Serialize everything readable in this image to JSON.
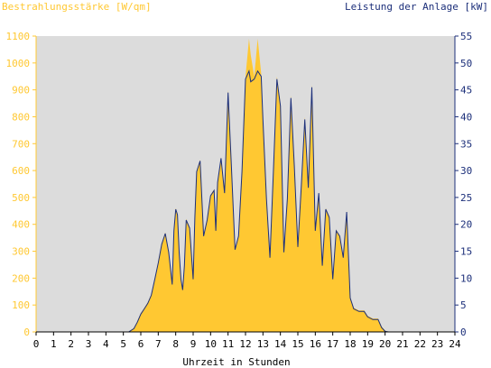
{
  "chart_data": {
    "type": "area",
    "title_left": "Bestrahlungsstärke [W/qm]",
    "title_right": "Leistung der Anlage [kW]",
    "xlabel": "Uhrzeit in Stunden",
    "x_ticks": [
      "0",
      "1",
      "2",
      "3",
      "4",
      "5",
      "6",
      "7",
      "8",
      "9",
      "10",
      "11",
      "12",
      "13",
      "14",
      "15",
      "16",
      "17",
      "18",
      "19",
      "20",
      "21",
      "22",
      "23",
      "24"
    ],
    "y_left_ticks": [
      "0",
      "100",
      "200",
      "300",
      "400",
      "500",
      "600",
      "700",
      "800",
      "900",
      "1000",
      "1100"
    ],
    "y_right_ticks": [
      "0",
      "5",
      "10",
      "15",
      "20",
      "25",
      "30",
      "35",
      "40",
      "45",
      "50",
      "55"
    ],
    "xlim": [
      0,
      24
    ],
    "ylim_left": [
      0,
      1100
    ],
    "ylim_right": [
      0,
      55
    ],
    "grid": false,
    "colors": {
      "plot_bg": "#dcdcdc",
      "irradiance_fill": "#ffc832",
      "power_line": "#1c2f7a",
      "left_axis": "#ffc832",
      "right_axis": "#1c2f7a",
      "x_axis_text": "#000000"
    },
    "series": [
      {
        "axis": "left",
        "style": "filled-area",
        "x": [
          0,
          5.3,
          5.6,
          5.8,
          6.0,
          6.2,
          6.4,
          6.6,
          6.8,
          7.0,
          7.2,
          7.4,
          7.6,
          7.8,
          7.9,
          8.0,
          8.1,
          8.2,
          8.3,
          8.4,
          8.5,
          8.6,
          8.8,
          9.0,
          9.1,
          9.2,
          9.4,
          9.6,
          9.8,
          10.0,
          10.2,
          10.3,
          10.4,
          10.6,
          10.8,
          11.0,
          11.2,
          11.4,
          11.6,
          11.8,
          12.0,
          12.2,
          12.3,
          12.5,
          12.7,
          12.9,
          13.0,
          13.2,
          13.4,
          13.6,
          13.8,
          14.0,
          14.2,
          14.4,
          14.6,
          14.8,
          15.0,
          15.2,
          15.4,
          15.6,
          15.8,
          16.0,
          16.2,
          16.4,
          16.6,
          16.8,
          17.0,
          17.2,
          17.4,
          17.6,
          17.8,
          18.0,
          18.2,
          18.5,
          18.8,
          19.0,
          19.3,
          19.6,
          19.8,
          20.0,
          20.2,
          24
        ],
        "y": [
          0,
          0,
          15,
          40,
          70,
          90,
          110,
          140,
          200,
          260,
          330,
          370,
          300,
          180,
          380,
          460,
          440,
          300,
          200,
          160,
          250,
          420,
          390,
          200,
          430,
          600,
          640,
          360,
          420,
          510,
          530,
          380,
          560,
          650,
          520,
          900,
          610,
          310,
          360,
          600,
          950,
          1090,
          1030,
          950,
          1090,
          960,
          800,
          500,
          280,
          600,
          950,
          850,
          300,
          500,
          880,
          620,
          320,
          550,
          800,
          540,
          920,
          380,
          520,
          250,
          460,
          430,
          200,
          380,
          360,
          280,
          450,
          130,
          90,
          80,
          80,
          60,
          50,
          50,
          20,
          5,
          0,
          0
        ]
      },
      {
        "axis": "right",
        "style": "line",
        "x": [
          0,
          5.3,
          5.6,
          5.8,
          6.0,
          6.2,
          6.4,
          6.6,
          6.8,
          7.0,
          7.2,
          7.4,
          7.6,
          7.8,
          7.9,
          8.0,
          8.1,
          8.2,
          8.3,
          8.4,
          8.5,
          8.6,
          8.8,
          9.0,
          9.1,
          9.2,
          9.4,
          9.6,
          9.8,
          10.0,
          10.2,
          10.3,
          10.4,
          10.6,
          10.8,
          11.0,
          11.2,
          11.4,
          11.6,
          11.8,
          12.0,
          12.2,
          12.3,
          12.5,
          12.7,
          12.9,
          13.0,
          13.2,
          13.4,
          13.6,
          13.8,
          14.0,
          14.2,
          14.4,
          14.6,
          14.8,
          15.0,
          15.2,
          15.4,
          15.6,
          15.8,
          16.0,
          16.2,
          16.4,
          16.6,
          16.8,
          17.0,
          17.2,
          17.4,
          17.6,
          17.8,
          18.0,
          18.2,
          18.5,
          18.8,
          19.0,
          19.3,
          19.6,
          19.8,
          20.0,
          20.2,
          24
        ],
        "y": [
          0,
          0,
          0.6,
          1.8,
          3.3,
          4.3,
          5.3,
          6.8,
          9.8,
          12.8,
          16.3,
          18.3,
          14.8,
          8.8,
          18.8,
          22.8,
          21.8,
          14.8,
          9.8,
          7.8,
          12.3,
          20.8,
          19.3,
          9.8,
          21.3,
          29.8,
          31.8,
          17.8,
          20.8,
          25.3,
          26.3,
          18.8,
          27.8,
          32.3,
          25.8,
          44.5,
          30.3,
          15.3,
          17.8,
          29.8,
          47.0,
          48.5,
          46.5,
          47.0,
          48.5,
          47.5,
          39.5,
          24.8,
          13.8,
          29.8,
          47.0,
          42.0,
          14.8,
          24.8,
          43.5,
          30.8,
          15.8,
          27.3,
          39.5,
          26.8,
          45.5,
          18.8,
          25.8,
          12.3,
          22.8,
          21.3,
          9.8,
          18.8,
          17.8,
          13.8,
          22.3,
          6.3,
          4.3,
          3.8,
          3.8,
          2.8,
          2.3,
          2.3,
          0.8,
          0.1,
          0,
          0
        ]
      }
    ]
  }
}
